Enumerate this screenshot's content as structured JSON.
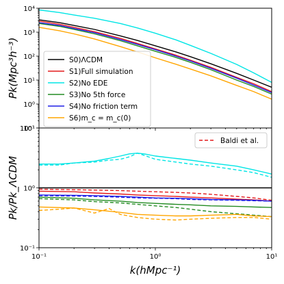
{
  "chart_data": {
    "type": "line",
    "xlabel": "k(hMpc⁻¹)",
    "x_scale": "log",
    "xlim": [
      0.1,
      10
    ],
    "x_ticks": [
      {
        "value": 0.1,
        "label": "10⁻¹"
      },
      {
        "value": 1,
        "label": "10⁰"
      },
      {
        "value": 10,
        "label": "10¹"
      }
    ],
    "panels": [
      {
        "id": "pk",
        "ylabel": "Pk(Mpc³h⁻³)",
        "y_scale": "log",
        "ylim": [
          0.1,
          10000
        ],
        "y_ticks": [
          {
            "value": 10000,
            "label": "10⁴"
          },
          {
            "value": 1000,
            "label": "10³"
          },
          {
            "value": 100,
            "label": "10²"
          },
          {
            "value": 10,
            "label": "10¹"
          },
          {
            "value": 1,
            "label": "10⁰"
          },
          {
            "value": 0.1,
            "label": "10⁻¹"
          }
        ],
        "legend_position": "lower-left",
        "series": [
          {
            "name": "S0)ΛCDM",
            "color": "#000000",
            "dash": "solid",
            "x": [
              0.1,
              0.15,
              0.2,
              0.3,
              0.5,
              0.7,
              1,
              1.5,
              2,
              3,
              5,
              7,
              10
            ],
            "y": [
              3300,
              2500,
              1900,
              1300,
              700,
              450,
              270,
              150,
              95,
              48,
              19,
              10,
              5
            ]
          },
          {
            "name": "S1)Full simulation",
            "color": "#e41a1c",
            "dash": "solid",
            "x": [
              0.1,
              0.15,
              0.2,
              0.3,
              0.5,
              0.7,
              1,
              1.5,
              2,
              3,
              5,
              7,
              10
            ],
            "y": [
              2900,
              2150,
              1600,
              1050,
              550,
              340,
              200,
              110,
              68,
              34,
              13,
              7,
              3.3
            ]
          },
          {
            "name": "S2)No EDE",
            "color": "#00e5e5",
            "dash": "solid",
            "x": [
              0.1,
              0.15,
              0.2,
              0.3,
              0.5,
              0.7,
              1,
              1.5,
              2,
              3,
              5,
              7,
              10
            ],
            "y": [
              8500,
              6600,
              5200,
              3800,
              2300,
              1500,
              900,
              480,
              280,
              130,
              45,
              20,
              8
            ]
          },
          {
            "name": "S3)No 5th force",
            "color": "#228b22",
            "dash": "solid",
            "x": [
              0.1,
              0.15,
              0.2,
              0.3,
              0.5,
              0.7,
              1,
              1.5,
              2,
              3,
              5,
              7,
              10
            ],
            "y": [
              2300,
              1750,
              1300,
              850,
              440,
              270,
              160,
              88,
              55,
              27,
              10,
              5.4,
              2.6
            ]
          },
          {
            "name": "S4)No friction term",
            "color": "#1f1fe6",
            "dash": "solid",
            "x": [
              0.1,
              0.15,
              0.2,
              0.3,
              0.5,
              0.7,
              1,
              1.5,
              2,
              3,
              5,
              7,
              10
            ],
            "y": [
              2500,
              1900,
              1420,
              950,
              490,
              310,
              185,
              100,
              63,
              31,
              12,
              6.2,
              3
            ]
          },
          {
            "name": "S6)m_c = m_c(0)",
            "color": "#ffa500",
            "dash": "solid",
            "x": [
              0.1,
              0.15,
              0.2,
              0.3,
              0.5,
              0.7,
              1,
              1.5,
              2,
              3,
              5,
              7,
              10
            ],
            "y": [
              1600,
              1150,
              850,
              520,
              250,
              150,
              85,
              46,
              29,
              15,
              6,
              3.3,
              1.6
            ]
          }
        ]
      },
      {
        "id": "ratio",
        "ylabel": "Pk/Pk_ΛCDM",
        "y_scale": "log",
        "ylim": [
          0.1,
          10
        ],
        "y_ticks": [
          {
            "value": 10,
            "label": "10¹"
          },
          {
            "value": 1,
            "label": "10⁰"
          },
          {
            "value": 0.1,
            "label": "10⁻¹"
          }
        ],
        "legend_position": "upper-right",
        "legend_entries": [
          "Baldi et al."
        ],
        "series": [
          {
            "name": "ΛCDM",
            "color": "#000000",
            "dash": "solid",
            "x": [
              0.1,
              10
            ],
            "y": [
              1.0,
              1.0
            ]
          },
          {
            "name": "S2)No EDE",
            "color": "#00e5e5",
            "dash": "solid",
            "x": [
              0.1,
              0.15,
              0.2,
              0.3,
              0.4,
              0.5,
              0.6,
              0.7,
              0.8,
              1,
              1.5,
              2,
              3,
              5,
              7,
              10
            ],
            "y": [
              2.5,
              2.5,
              2.6,
              2.8,
              3.1,
              3.4,
              3.7,
              3.8,
              3.7,
              3.4,
              3.1,
              2.9,
              2.6,
              2.3,
              2.0,
              1.7
            ]
          },
          {
            "name": "S2 Baldi et al.",
            "color": "#00e5e5",
            "dash": "dashed",
            "x": [
              0.1,
              0.15,
              0.2,
              0.3,
              0.4,
              0.5,
              0.6,
              0.7,
              0.8,
              1,
              1.5,
              2,
              3,
              5,
              7,
              10
            ],
            "y": [
              2.4,
              2.4,
              2.6,
              2.7,
              2.9,
              3.0,
              3.3,
              3.8,
              3.5,
              3.0,
              2.7,
              2.5,
              2.3,
              2.0,
              1.8,
              1.5
            ]
          },
          {
            "name": "S1)Full simulation",
            "color": "#e41a1c",
            "dash": "solid",
            "x": [
              0.1,
              0.2,
              0.3,
              0.5,
              0.7,
              1,
              1.5,
              2,
              3,
              5,
              7,
              10
            ],
            "y": [
              0.88,
              0.86,
              0.82,
              0.79,
              0.76,
              0.74,
              0.72,
              0.7,
              0.68,
              0.65,
              0.63,
              0.6
            ]
          },
          {
            "name": "S1 Baldi et al.",
            "color": "#e41a1c",
            "dash": "dashed",
            "x": [
              0.1,
              0.2,
              0.3,
              0.5,
              0.7,
              1,
              1.5,
              2,
              3,
              5,
              7,
              10
            ],
            "y": [
              0.95,
              0.93,
              0.92,
              0.9,
              0.88,
              0.86,
              0.84,
              0.82,
              0.78,
              0.72,
              0.68,
              0.62
            ]
          },
          {
            "name": "S4)No friction term",
            "color": "#1f1fe6",
            "dash": "solid",
            "x": [
              0.1,
              0.2,
              0.3,
              0.5,
              0.7,
              1,
              1.5,
              2,
              3,
              5,
              7,
              10
            ],
            "y": [
              0.76,
              0.75,
              0.74,
              0.72,
              0.7,
              0.68,
              0.67,
              0.66,
              0.64,
              0.63,
              0.62,
              0.6
            ]
          },
          {
            "name": "S4 Baldi et al.",
            "color": "#1f1fe6",
            "dash": "dashed",
            "x": [
              0.1,
              0.2,
              0.3,
              0.5,
              0.7,
              1,
              1.5,
              2,
              3,
              5,
              7,
              10
            ],
            "y": [
              0.74,
              0.73,
              0.72,
              0.7,
              0.68,
              0.67,
              0.66,
              0.64,
              0.63,
              0.62,
              0.61,
              0.6
            ]
          },
          {
            "name": "S3)No 5th force",
            "color": "#228b22",
            "dash": "solid",
            "x": [
              0.1,
              0.2,
              0.3,
              0.5,
              0.7,
              1,
              1.5,
              2,
              3,
              5,
              7,
              10
            ],
            "y": [
              0.7,
              0.67,
              0.63,
              0.6,
              0.57,
              0.55,
              0.53,
              0.52,
              0.5,
              0.49,
              0.48,
              0.47
            ]
          },
          {
            "name": "S3 Baldi et al.",
            "color": "#228b22",
            "dash": "dashed",
            "x": [
              0.1,
              0.2,
              0.3,
              0.5,
              0.7,
              1,
              1.5,
              2,
              3,
              5,
              7,
              10
            ],
            "y": [
              0.66,
              0.63,
              0.59,
              0.56,
              0.53,
              0.5,
              0.47,
              0.44,
              0.4,
              0.37,
              0.35,
              0.33
            ]
          },
          {
            "name": "S6)m_c = m_c(0)",
            "color": "#ffa500",
            "dash": "solid",
            "x": [
              0.1,
              0.2,
              0.3,
              0.5,
              0.7,
              1,
              1.5,
              2,
              3,
              5,
              7,
              10
            ],
            "y": [
              0.48,
              0.46,
              0.43,
              0.39,
              0.36,
              0.35,
              0.34,
              0.34,
              0.35,
              0.36,
              0.34,
              0.33
            ]
          },
          {
            "name": "S6 Baldi et al.",
            "color": "#ffa500",
            "dash": "dashed",
            "x": [
              0.1,
              0.15,
              0.2,
              0.3,
              0.4,
              0.5,
              0.7,
              1,
              1.5,
              2,
              3,
              5,
              7,
              10
            ],
            "y": [
              0.42,
              0.44,
              0.46,
              0.38,
              0.45,
              0.36,
              0.32,
              0.3,
              0.29,
              0.3,
              0.31,
              0.32,
              0.32,
              0.3
            ]
          }
        ]
      }
    ]
  }
}
